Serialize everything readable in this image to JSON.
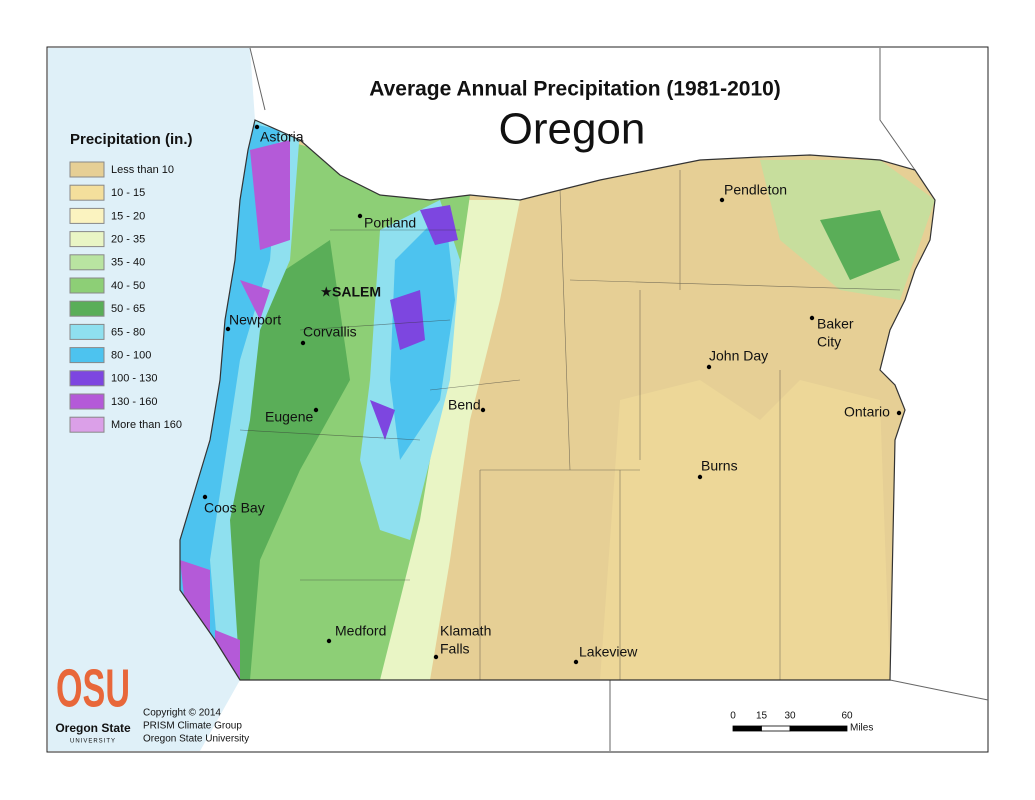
{
  "title": "Average Annual Precipitation (1981-2010)",
  "state": "Oregon",
  "legend": {
    "title": "Precipitation (in.)",
    "items": [
      {
        "label": "Less than 10",
        "color": "#e6cf95"
      },
      {
        "label": "10 - 15",
        "color": "#f4df9c"
      },
      {
        "label": "15 - 20",
        "color": "#fbf3c0"
      },
      {
        "label": "20 - 35",
        "color": "#e9f5c5"
      },
      {
        "label": "35 - 40",
        "color": "#b9e4a1"
      },
      {
        "label": "40 - 50",
        "color": "#8dcf76"
      },
      {
        "label": "50 - 65",
        "color": "#5aae58"
      },
      {
        "label": "65 - 80",
        "color": "#8fe0ef"
      },
      {
        "label": "80 - 100",
        "color": "#4dc3ef"
      },
      {
        "label": "100 - 130",
        "color": "#7d46e0"
      },
      {
        "label": "130 - 160",
        "color": "#b45ad8"
      },
      {
        "label": "More than 160",
        "color": "#dba0e8"
      }
    ]
  },
  "cities": [
    "Astoria",
    "Portland",
    "SALEM",
    "Newport",
    "Corvallis",
    "Eugene",
    "Coos Bay",
    "Medford",
    "Klamath",
    "Falls",
    "Bend",
    "Pendleton",
    "Baker",
    "City",
    "John Day",
    "Ontario",
    "Burns",
    "Lakeview"
  ],
  "credits": {
    "logo": "OSU",
    "logo_name": "Oregon State",
    "logo_sub": "UNIVERSITY",
    "lines": [
      "Copyright © 2014",
      "PRISM Climate Group",
      "Oregon State University"
    ]
  },
  "scale": {
    "ticks": [
      0,
      15,
      30,
      60
    ],
    "unit": "Miles"
  }
}
